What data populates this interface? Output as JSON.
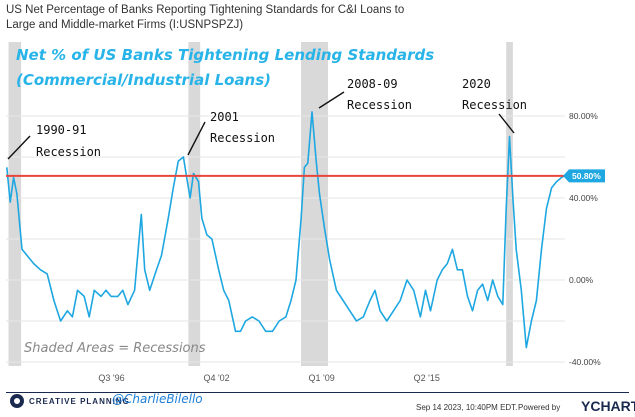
{
  "header": {
    "title": "US Net Percentage of Banks Reporting Tightening Standards for C&I Loans to Large and Middle-market Firms (I:USNPSPZJ)"
  },
  "overlay": {
    "title_line1": "Net % of US Banks Tightening Lending Standards",
    "title_line2": "(Commercial/Industrial Loans)",
    "shaded_note": "Shaded Areas = Recessions"
  },
  "annotations": [
    {
      "line1": "1990-91",
      "line2": "Recession"
    },
    {
      "line1": "2001",
      "line2": "Recession"
    },
    {
      "line1": "2008-09",
      "line2": "Recession"
    },
    {
      "line1": "2020",
      "line2": "Recession"
    }
  ],
  "colors": {
    "series": "#1ea7e1",
    "current_line": "#e8463a",
    "shade": "#d9d9d9",
    "badge": "#1ea7e1",
    "title_overlay": "#28b4e8"
  },
  "chart_data": {
    "type": "line",
    "x_unit": "year",
    "ylim": [
      -40,
      100
    ],
    "yticks": [
      {
        "value": 80,
        "label": "80.00%"
      },
      {
        "value": 40,
        "label": "40.00%"
      },
      {
        "value": 0,
        "label": "0.00%"
      },
      {
        "value": -40,
        "label": "-40.00%"
      }
    ],
    "xticks": [
      {
        "value": 1996.625,
        "label": "Q3 '96"
      },
      {
        "value": 2002.875,
        "label": "Q4 '02"
      },
      {
        "value": 2009.125,
        "label": "Q1 '09"
      },
      {
        "value": 2015.375,
        "label": "Q2 '15"
      }
    ],
    "grid": true,
    "recessions": [
      [
        1990.5,
        1991.25
      ],
      [
        2001.2,
        2001.9
      ],
      [
        2007.9,
        2009.5
      ],
      [
        2020.1,
        2020.5
      ]
    ],
    "current_value": {
      "value": 50.8,
      "label": "50.80%"
    },
    "series": [
      {
        "x": [
          1990.4,
          1990.6,
          1990.8,
          1991.0,
          1991.3,
          1991.6,
          1992.0,
          1992.4,
          1992.8,
          1993.2,
          1993.6,
          1994.0,
          1994.3,
          1994.6,
          1995.0,
          1995.3,
          1995.6,
          1996.0,
          1996.3,
          1996.6,
          1997.0,
          1997.3,
          1997.6,
          1998.0,
          1998.4,
          1998.6,
          1998.9,
          1999.3,
          1999.6,
          2000.0,
          2000.3,
          2000.6,
          2000.9,
          2001.1,
          2001.3,
          2001.5,
          2001.8,
          2002.0,
          2002.3,
          2002.6,
          2003.0,
          2003.3,
          2003.6,
          2004.0,
          2004.3,
          2004.6,
          2005.0,
          2005.4,
          2005.8,
          2006.2,
          2006.6,
          2007.0,
          2007.3,
          2007.6,
          2007.9,
          2008.1,
          2008.3,
          2008.55,
          2008.8,
          2009.0,
          2009.3,
          2009.6,
          2010.0,
          2010.4,
          2010.8,
          2011.2,
          2011.6,
          2012.0,
          2012.3,
          2012.6,
          2013.0,
          2013.4,
          2013.8,
          2014.2,
          2014.6,
          2015.0,
          2015.3,
          2015.6,
          2016.0,
          2016.3,
          2016.6,
          2016.9,
          2017.2,
          2017.5,
          2017.8,
          2018.1,
          2018.4,
          2018.7,
          2019.0,
          2019.3,
          2019.6,
          2019.9,
          2020.1,
          2020.3,
          2020.5,
          2020.7,
          2021.0,
          2021.3,
          2021.6,
          2021.9,
          2022.2,
          2022.5,
          2022.8,
          2023.1,
          2023.4,
          2023.55
        ],
        "y": [
          55,
          38,
          50,
          42,
          15,
          12,
          8,
          5,
          3,
          -10,
          -20,
          -15,
          -18,
          -5,
          -8,
          -18,
          -5,
          -8,
          -5,
          -8,
          -8,
          -5,
          -12,
          -5,
          32,
          5,
          -5,
          5,
          12,
          30,
          45,
          58,
          60,
          50,
          40,
          52,
          48,
          30,
          22,
          20,
          5,
          -5,
          -10,
          -25,
          -25,
          -20,
          -18,
          -20,
          -25,
          -25,
          -20,
          -18,
          -10,
          0,
          30,
          55,
          57,
          82,
          58,
          42,
          25,
          10,
          -5,
          -10,
          -15,
          -20,
          -18,
          -10,
          -5,
          -15,
          -20,
          -15,
          -10,
          0,
          -5,
          -18,
          -5,
          -15,
          0,
          5,
          8,
          15,
          5,
          5,
          -8,
          -15,
          -5,
          -2,
          -10,
          0,
          -8,
          -12,
          35,
          70,
          40,
          15,
          -5,
          -33,
          -20,
          -10,
          15,
          35,
          45,
          48,
          50,
          50.8
        ]
      }
    ]
  },
  "footer": {
    "brand": "CREATIVE PLANNING",
    "handle": "@CharlieBilello",
    "timestamp": "Sep 14 2023, 10:40PM EDT.",
    "powered_by": "Powered by",
    "ycharts": "YCHARTS"
  }
}
